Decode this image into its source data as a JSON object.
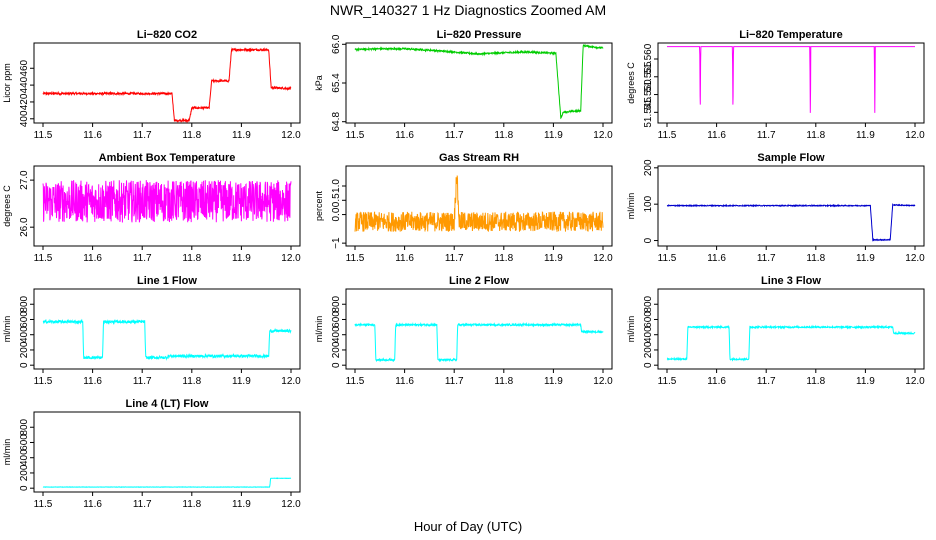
{
  "figure": {
    "title": "NWR_140327  1 Hz Diagnostics Zoomed AM",
    "xlabel": "Hour of Day (UTC)"
  },
  "chart_data": [
    {
      "type": "line",
      "title": "Li−820 CO2",
      "ylabel": "Licor ppm",
      "color": "#ff0000",
      "xlim": [
        11.5,
        12.0
      ],
      "ylim": [
        395,
        490
      ],
      "xticks": [
        "11.5",
        "11.6",
        "11.7",
        "11.8",
        "11.9",
        "12.0"
      ],
      "yticks": [
        "400",
        "420",
        "440",
        "460"
      ],
      "noise": 1.2,
      "points": [
        [
          11.5,
          430
        ],
        [
          11.76,
          430
        ],
        [
          11.765,
          398
        ],
        [
          11.795,
          398
        ],
        [
          11.8,
          413
        ],
        [
          11.835,
          413
        ],
        [
          11.84,
          445
        ],
        [
          11.875,
          445
        ],
        [
          11.88,
          482
        ],
        [
          11.955,
          482
        ],
        [
          11.96,
          437
        ],
        [
          12.0,
          436
        ]
      ]
    },
    {
      "type": "line",
      "title": "Li−820 Pressure",
      "ylabel": "kPa",
      "color": "#00cc00",
      "xlim": [
        11.5,
        12.0
      ],
      "ylim": [
        64.78,
        66.02
      ],
      "xticks": [
        "11.5",
        "11.6",
        "11.7",
        "11.8",
        "11.9",
        "12.0"
      ],
      "yticks": [
        "64.8",
        "65.4",
        "66.0"
      ],
      "noise": 0.012,
      "points": [
        [
          11.5,
          65.92
        ],
        [
          11.55,
          65.93
        ],
        [
          11.6,
          65.93
        ],
        [
          11.65,
          65.91
        ],
        [
          11.7,
          65.88
        ],
        [
          11.75,
          65.85
        ],
        [
          11.8,
          65.87
        ],
        [
          11.85,
          65.88
        ],
        [
          11.905,
          65.86
        ],
        [
          11.915,
          64.85
        ],
        [
          11.92,
          64.95
        ],
        [
          11.955,
          64.97
        ],
        [
          11.96,
          65.98
        ],
        [
          12.0,
          65.94
        ]
      ]
    },
    {
      "type": "line",
      "title": "Li−820 Temperature",
      "ylabel": "degrees C",
      "color": "#ff00ff",
      "xlim": [
        11.5,
        12.0
      ],
      "ylim": [
        51.542,
        51.5645
      ],
      "xticks": [
        "11.5",
        "11.6",
        "11.7",
        "11.8",
        "11.9",
        "12.0"
      ],
      "yticks": [
        "51.545",
        "51.550",
        "51.555",
        "51.560"
      ],
      "noise": 0,
      "points": [
        [
          11.5,
          51.5635
        ],
        [
          11.566,
          51.5635
        ],
        [
          11.567,
          51.5425
        ],
        [
          11.568,
          51.5635
        ],
        [
          11.632,
          51.5635
        ],
        [
          11.633,
          51.5425
        ],
        [
          11.634,
          51.5635
        ],
        [
          11.788,
          51.5635
        ],
        [
          11.789,
          51.5425
        ],
        [
          11.79,
          51.5635
        ],
        [
          11.918,
          51.5635
        ],
        [
          11.919,
          51.5425
        ],
        [
          11.92,
          51.5635
        ],
        [
          12.0,
          51.5635
        ]
      ]
    },
    {
      "type": "line",
      "title": "Ambient Box Temperature",
      "ylabel": "degrees C",
      "color": "#ff00ff",
      "xlim": [
        11.5,
        12.0
      ],
      "ylim": [
        25.6,
        27.3
      ],
      "xticks": [
        "11.5",
        "11.6",
        "11.7",
        "11.8",
        "11.9",
        "12.0"
      ],
      "yticks": [
        "26.0",
        "27.0"
      ],
      "noise": 0.45,
      "points": [
        [
          11.5,
          26.55
        ],
        [
          12.0,
          26.55
        ]
      ]
    },
    {
      "type": "line",
      "title": "Gas Stream RH",
      "ylabel": "percent",
      "color": "#ff9900",
      "xlim": [
        11.5,
        12.0
      ],
      "ylim": [
        -1.1,
        1.7
      ],
      "xticks": [
        "11.5",
        "11.6",
        "11.7",
        "11.8",
        "11.9",
        "12.0"
      ],
      "yticks": [
        "−1",
        "0.0",
        "0.5",
        "1.0"
      ],
      "noise": 0.35,
      "points": [
        [
          11.5,
          -0.25
        ],
        [
          11.7,
          -0.25
        ],
        [
          11.705,
          1.5
        ],
        [
          11.71,
          -0.25
        ],
        [
          12.0,
          -0.25
        ]
      ]
    },
    {
      "type": "line",
      "title": "Sample Flow",
      "ylabel": "ml/min",
      "color": "#0000cc",
      "xlim": [
        11.5,
        12.0
      ],
      "ylim": [
        -15,
        205
      ],
      "xticks": [
        "11.5",
        "11.6",
        "11.7",
        "11.8",
        "11.9",
        "12.0"
      ],
      "yticks": [
        "0",
        "100",
        "200"
      ],
      "noise": 1.2,
      "points": [
        [
          11.5,
          96
        ],
        [
          11.91,
          96
        ],
        [
          11.915,
          2
        ],
        [
          11.95,
          2
        ],
        [
          11.955,
          98
        ],
        [
          12.0,
          96
        ]
      ]
    },
    {
      "type": "line",
      "title": "Line 1 Flow",
      "ylabel": "ml/min",
      "color": "#00ffff",
      "xlim": [
        11.5,
        12.0
      ],
      "ylim": [
        -50,
        1000
      ],
      "xticks": [
        "11.5",
        "11.6",
        "11.7",
        "11.8",
        "11.9",
        "12.0"
      ],
      "yticks": [
        "0",
        "200",
        "400",
        "600",
        "800"
      ],
      "noise": 18,
      "points": [
        [
          11.5,
          570
        ],
        [
          11.58,
          570
        ],
        [
          11.582,
          100
        ],
        [
          11.62,
          100
        ],
        [
          11.622,
          570
        ],
        [
          11.705,
          570
        ],
        [
          11.707,
          100
        ],
        [
          11.75,
          100
        ],
        [
          11.752,
          120
        ],
        [
          11.955,
          120
        ],
        [
          11.957,
          450
        ],
        [
          12.0,
          450
        ]
      ]
    },
    {
      "type": "line",
      "title": "Line 2 Flow",
      "ylabel": "ml/min",
      "color": "#00ffff",
      "xlim": [
        11.5,
        12.0
      ],
      "ylim": [
        -50,
        1000
      ],
      "xticks": [
        "11.5",
        "11.6",
        "11.7",
        "11.8",
        "11.9",
        "12.0"
      ],
      "yticks": [
        "0",
        "200",
        "400",
        "600",
        "800"
      ],
      "noise": 12,
      "points": [
        [
          11.5,
          530
        ],
        [
          11.54,
          530
        ],
        [
          11.542,
          70
        ],
        [
          11.58,
          70
        ],
        [
          11.582,
          530
        ],
        [
          11.665,
          530
        ],
        [
          11.667,
          70
        ],
        [
          11.705,
          70
        ],
        [
          11.707,
          530
        ],
        [
          11.955,
          530
        ],
        [
          11.957,
          440
        ],
        [
          12.0,
          440
        ]
      ]
    },
    {
      "type": "line",
      "title": "Line 3 Flow",
      "ylabel": "ml/min",
      "color": "#00ffff",
      "xlim": [
        11.5,
        12.0
      ],
      "ylim": [
        -50,
        1000
      ],
      "xticks": [
        "11.5",
        "11.6",
        "11.7",
        "11.8",
        "11.9",
        "12.0"
      ],
      "yticks": [
        "0",
        "200",
        "400",
        "600",
        "800"
      ],
      "noise": 10,
      "points": [
        [
          11.5,
          80
        ],
        [
          11.54,
          80
        ],
        [
          11.542,
          500
        ],
        [
          11.625,
          500
        ],
        [
          11.627,
          80
        ],
        [
          11.665,
          80
        ],
        [
          11.667,
          500
        ],
        [
          11.955,
          500
        ],
        [
          11.957,
          420
        ],
        [
          12.0,
          420
        ]
      ]
    },
    {
      "type": "line",
      "title": "Line 4 (LT) Flow",
      "ylabel": "ml/min",
      "color": "#00ffff",
      "xlim": [
        11.5,
        12.0
      ],
      "ylim": [
        -50,
        1000
      ],
      "xticks": [
        "11.5",
        "11.6",
        "11.7",
        "11.8",
        "11.9",
        "12.0"
      ],
      "yticks": [
        "0",
        "200",
        "400",
        "600",
        "800"
      ],
      "noise": 2,
      "points": [
        [
          11.5,
          15
        ],
        [
          11.957,
          15
        ],
        [
          11.959,
          130
        ],
        [
          12.0,
          130
        ]
      ]
    }
  ]
}
